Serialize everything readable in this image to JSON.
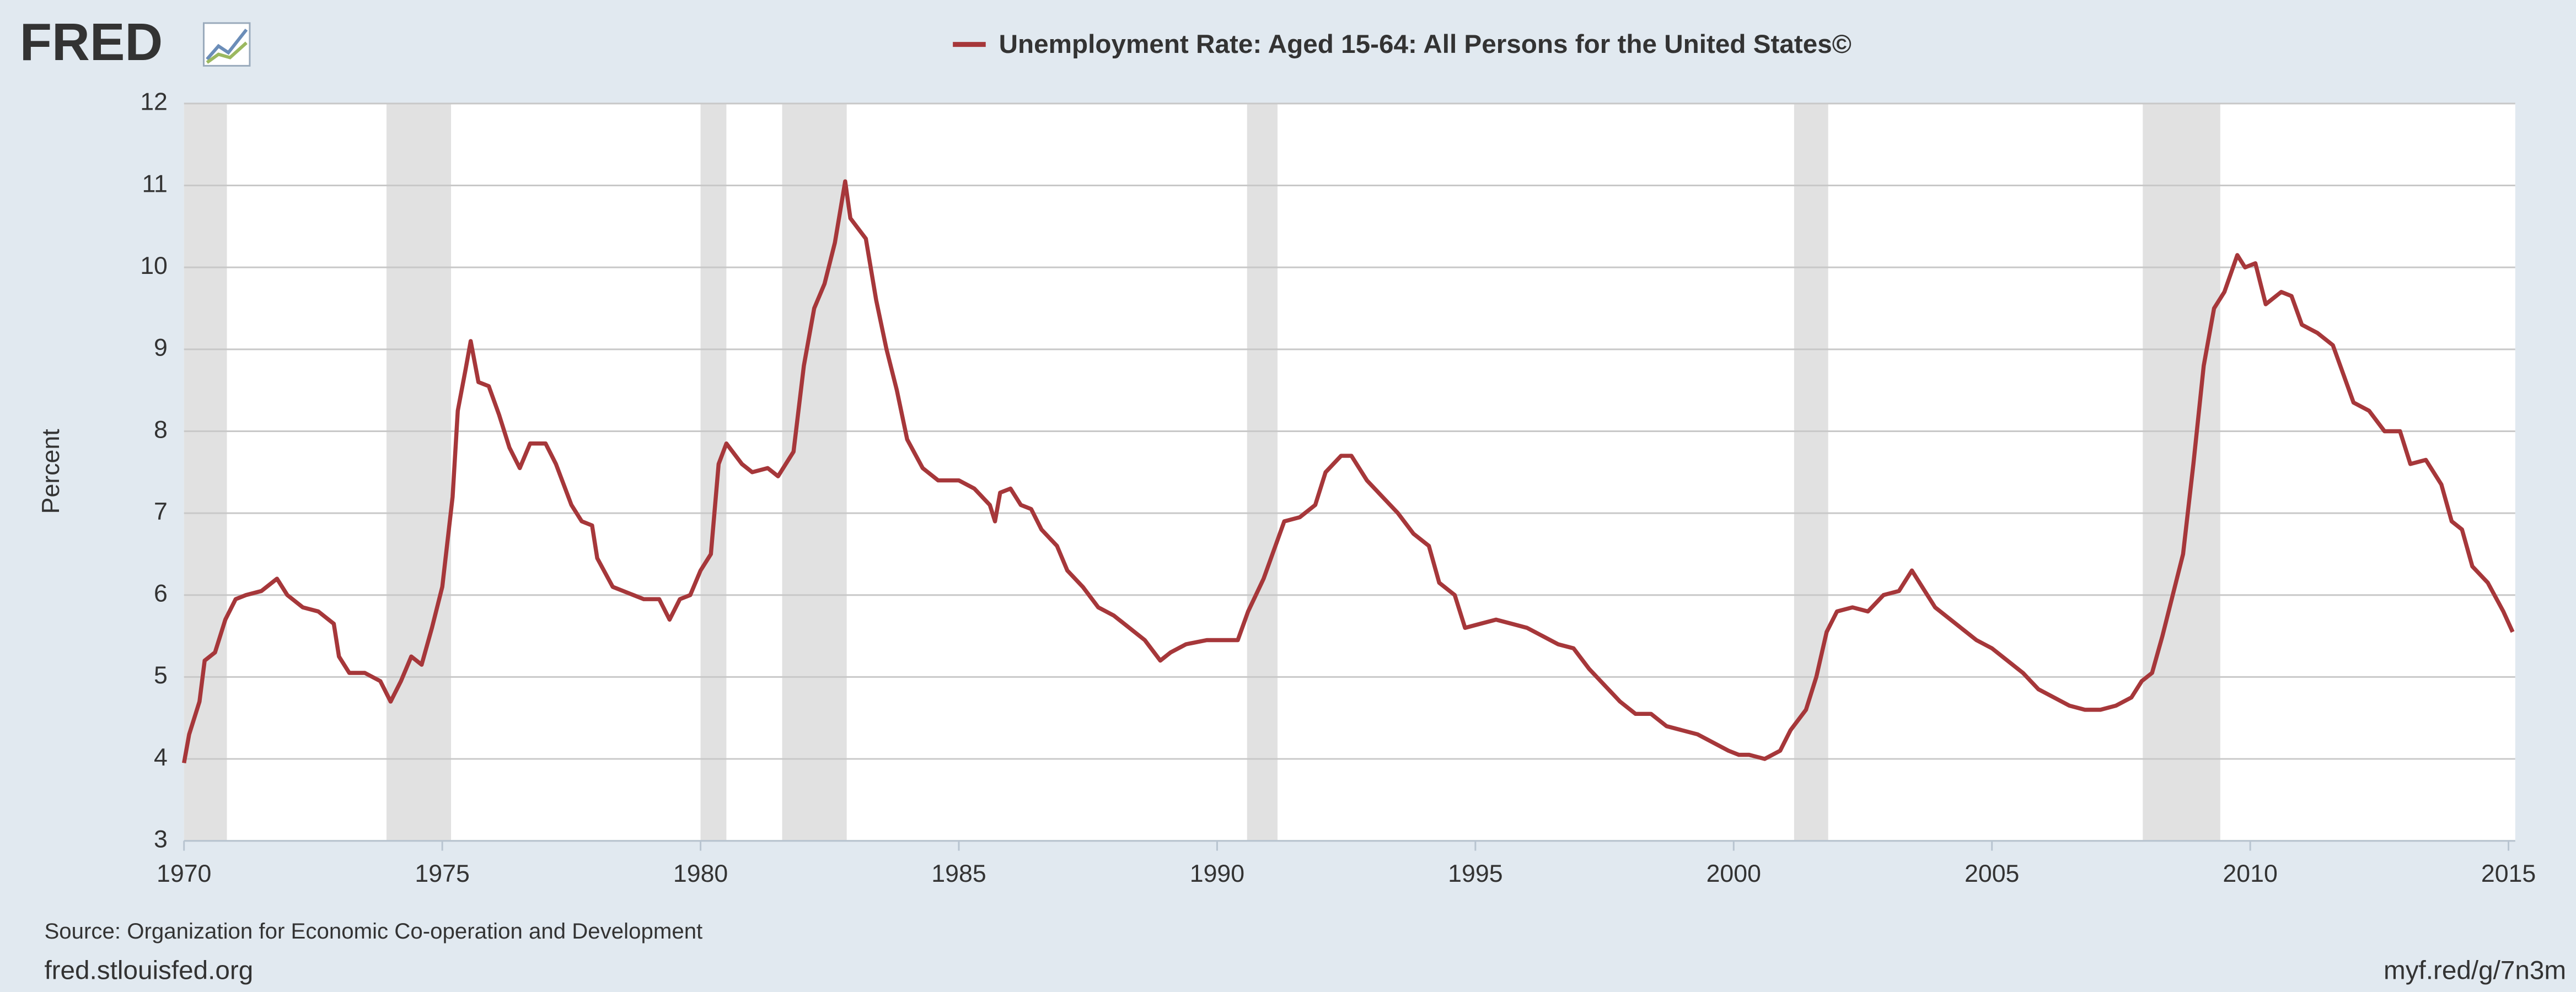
{
  "chart_data": {
    "type": "line",
    "logo": "FRED",
    "title": "Unemployment Rate: Aged 15-64: All Persons for the United States©",
    "y_label": "Percent",
    "source": "Source: Organization for Economic Co-operation and Development",
    "site": "fred.stlouisfed.org",
    "short_url": "myf.red/g/7n3m",
    "color": "#a6373a",
    "grid": true,
    "xlim": [
      1970,
      2015.13
    ],
    "ylim": [
      3,
      12
    ],
    "xticks": [
      1970,
      1975,
      1980,
      1985,
      1990,
      1995,
      2000,
      2005,
      2010,
      2015
    ],
    "yticks": [
      3,
      4,
      5,
      6,
      7,
      8,
      9,
      10,
      11,
      12
    ],
    "recessions": [
      [
        1970,
        1970.83
      ],
      [
        1973.92,
        1975.17
      ],
      [
        1980.0,
        1980.5
      ],
      [
        1981.58,
        1982.83
      ],
      [
        1990.58,
        1991.17
      ],
      [
        2001.17,
        2001.83
      ],
      [
        2007.92,
        2009.42
      ]
    ],
    "x": [
      1970.0,
      1970.1,
      1970.3,
      1970.4,
      1970.6,
      1970.8,
      1971.0,
      1971.2,
      1971.5,
      1971.8,
      1972.0,
      1972.3,
      1972.6,
      1972.9,
      1973.0,
      1973.2,
      1973.5,
      1973.8,
      1974.0,
      1974.2,
      1974.4,
      1974.6,
      1974.8,
      1975.0,
      1975.2,
      1975.3,
      1975.45,
      1975.55,
      1975.7,
      1975.9,
      1976.1,
      1976.3,
      1976.5,
      1976.7,
      1977.0,
      1977.2,
      1977.5,
      1977.7,
      1977.9,
      1978.0,
      1978.3,
      1978.5,
      1978.7,
      1978.9,
      1979.2,
      1979.4,
      1979.6,
      1979.8,
      1980.0,
      1980.2,
      1980.35,
      1980.5,
      1980.8,
      1981.0,
      1981.3,
      1981.5,
      1981.8,
      1982.0,
      1982.2,
      1982.4,
      1982.6,
      1982.8,
      1982.9,
      1983.2,
      1983.4,
      1983.6,
      1983.8,
      1984.0,
      1984.3,
      1984.6,
      1985.0,
      1985.3,
      1985.6,
      1985.7,
      1985.8,
      1986.0,
      1986.2,
      1986.4,
      1986.6,
      1986.9,
      1987.1,
      1987.4,
      1987.7,
      1988.0,
      1988.3,
      1988.6,
      1988.9,
      1989.1,
      1989.4,
      1989.8,
      1990.1,
      1990.4,
      1990.6,
      1990.9,
      1991.1,
      1991.3,
      1991.6,
      1991.9,
      1992.1,
      1992.4,
      1992.6,
      1992.9,
      1993.2,
      1993.5,
      1993.8,
      1994.1,
      1994.3,
      1994.6,
      1994.8,
      1995.1,
      1995.4,
      1995.7,
      1996.0,
      1996.3,
      1996.6,
      1996.9,
      1997.2,
      1997.5,
      1997.8,
      1998.1,
      1998.4,
      1998.7,
      1999.0,
      1999.3,
      1999.6,
      1999.9,
      2000.1,
      2000.3,
      2000.6,
      2000.9,
      2001.1,
      2001.4,
      2001.6,
      2001.8,
      2002.0,
      2002.3,
      2002.6,
      2002.9,
      2003.2,
      2003.45,
      2003.7,
      2003.9,
      2004.1,
      2004.4,
      2004.7,
      2005.0,
      2005.3,
      2005.6,
      2005.9,
      2006.2,
      2006.5,
      2006.8,
      2007.1,
      2007.4,
      2007.7,
      2007.9,
      2008.1,
      2008.3,
      2008.5,
      2008.7,
      2008.9,
      2009.1,
      2009.3,
      2009.5,
      2009.75,
      2009.9,
      2010.1,
      2010.3,
      2010.6,
      2010.8,
      2011.0,
      2011.3,
      2011.6,
      2011.8,
      2012.0,
      2012.3,
      2012.6,
      2012.9,
      2013.1,
      2013.4,
      2013.7,
      2013.9,
      2014.1,
      2014.3,
      2014.6,
      2014.9,
      2015.08
    ],
    "values": [
      3.95,
      4.3,
      4.7,
      5.2,
      5.3,
      5.7,
      5.95,
      6.0,
      6.05,
      6.2,
      6.0,
      5.85,
      5.8,
      5.65,
      5.25,
      5.05,
      5.05,
      4.95,
      4.7,
      4.95,
      5.25,
      5.15,
      5.6,
      6.1,
      7.2,
      8.25,
      8.75,
      9.1,
      8.6,
      8.55,
      8.2,
      7.8,
      7.55,
      7.85,
      7.85,
      7.6,
      7.1,
      6.9,
      6.85,
      6.45,
      6.1,
      6.05,
      6.0,
      5.95,
      5.95,
      5.7,
      5.95,
      6.0,
      6.3,
      6.5,
      7.6,
      7.85,
      7.6,
      7.5,
      7.55,
      7.45,
      7.75,
      8.8,
      9.5,
      9.8,
      10.3,
      11.05,
      10.6,
      10.35,
      9.6,
      9.0,
      8.5,
      7.9,
      7.55,
      7.4,
      7.4,
      7.3,
      7.1,
      6.9,
      7.25,
      7.3,
      7.1,
      7.05,
      6.8,
      6.6,
      6.3,
      6.1,
      5.85,
      5.75,
      5.6,
      5.45,
      5.2,
      5.3,
      5.4,
      5.45,
      5.45,
      5.45,
      5.8,
      6.2,
      6.55,
      6.9,
      6.95,
      7.1,
      7.5,
      7.7,
      7.7,
      7.4,
      7.2,
      7.0,
      6.75,
      6.6,
      6.15,
      6.0,
      5.6,
      5.65,
      5.7,
      5.65,
      5.6,
      5.5,
      5.4,
      5.35,
      5.1,
      4.9,
      4.7,
      4.55,
      4.55,
      4.4,
      4.35,
      4.3,
      4.2,
      4.1,
      4.05,
      4.05,
      4.0,
      4.1,
      4.35,
      4.6,
      5.0,
      5.55,
      5.8,
      5.85,
      5.8,
      6.0,
      6.05,
      6.3,
      6.05,
      5.85,
      5.75,
      5.6,
      5.45,
      5.35,
      5.2,
      5.05,
      4.85,
      4.75,
      4.65,
      4.6,
      4.6,
      4.65,
      4.75,
      4.95,
      5.05,
      5.5,
      6.0,
      6.5,
      7.6,
      8.8,
      9.5,
      9.7,
      10.15,
      10.0,
      10.05,
      9.55,
      9.7,
      9.65,
      9.3,
      9.2,
      9.05,
      8.7,
      8.35,
      8.25,
      8.0,
      8.0,
      7.6,
      7.65,
      7.35,
      6.9,
      6.8,
      6.35,
      6.15,
      5.8,
      5.55
    ]
  }
}
